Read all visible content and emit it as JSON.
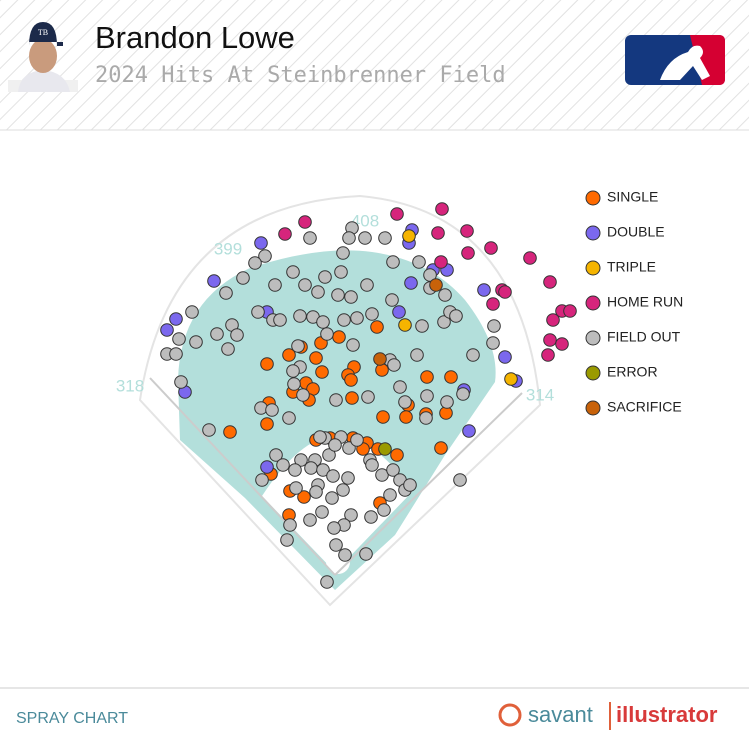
{
  "chart_data": {
    "type": "scatter",
    "title": "Brandon Lowe",
    "subtitle": "2024 Hits At Steinbrenner Field",
    "annotations": [
      "408",
      "399",
      "318",
      "314"
    ],
    "footer_label": "SPRAY CHART",
    "brand": [
      "savant",
      "illustrator"
    ],
    "series": [
      {
        "name": "SINGLE",
        "color": "#ff6a00",
        "x": [
          377,
          339,
          321,
          301,
          289,
          316,
          267,
          354,
          382,
          322,
          348,
          351,
          306,
          313,
          293,
          309,
          269,
          352,
          427,
          451,
          383,
          408,
          426,
          446,
          406,
          267,
          230,
          316,
          330,
          353,
          367,
          363,
          378,
          397,
          441,
          271,
          290,
          304,
          289,
          380
        ],
        "y": [
          327,
          337,
          343,
          347,
          355,
          358,
          364,
          367,
          370,
          372,
          375,
          380,
          383,
          389,
          392,
          400,
          403,
          398,
          377,
          377,
          417,
          405,
          414,
          413,
          417,
          424,
          432,
          440,
          438,
          438,
          443,
          449,
          449,
          455,
          448,
          474,
          491,
          497,
          515,
          503
        ]
      },
      {
        "name": "DOUBLE",
        "color": "#7b68ee",
        "x": [
          261,
          214,
          176,
          167,
          185,
          267,
          412,
          409,
          433,
          447,
          411,
          399,
          484,
          464,
          505,
          516,
          469,
          267
        ],
        "y": [
          243,
          281,
          319,
          330,
          392,
          312,
          230,
          243,
          270,
          270,
          283,
          312,
          290,
          390,
          357,
          381,
          431,
          467
        ]
      },
      {
        "name": "TRIPLE",
        "color": "#f5b400",
        "x": [
          409,
          405,
          511
        ],
        "y": [
          236,
          325,
          379
        ]
      },
      {
        "name": "HOME RUN",
        "color": "#d6257c",
        "x": [
          305,
          285,
          397,
          442,
          438,
          467,
          491,
          530,
          468,
          441,
          502,
          505,
          493,
          550,
          562,
          570,
          553,
          550,
          562,
          548
        ],
        "y": [
          222,
          234,
          214,
          209,
          233,
          231,
          248,
          258,
          253,
          262,
          290,
          292,
          304,
          282,
          311,
          311,
          320,
          340,
          344,
          355
        ]
      },
      {
        "name": "FIELD OUT",
        "color": "#bdbdbd",
        "x": [
          352,
          349,
          310,
          365,
          385,
          265,
          255,
          343,
          293,
          325,
          341,
          243,
          275,
          226,
          305,
          367,
          318,
          338,
          351,
          192,
          258,
          273,
          280,
          300,
          313,
          323,
          344,
          357,
          372,
          232,
          237,
          217,
          196,
          179,
          167,
          176,
          228,
          298,
          327,
          353,
          390,
          394,
          417,
          422,
          444,
          450,
          456,
          494,
          493,
          473,
          430,
          445,
          393,
          419,
          430,
          392,
          300,
          293,
          294,
          303,
          261,
          272,
          289,
          209,
          181,
          336,
          368,
          400,
          405,
          427,
          426,
          447,
          463,
          325,
          341,
          349,
          357,
          370,
          329,
          315,
          301,
          276,
          283,
          295,
          311,
          323,
          318,
          333,
          348,
          262,
          296,
          316,
          332,
          343,
          372,
          382,
          393,
          400,
          405,
          410,
          390,
          384,
          371,
          351,
          344,
          334,
          322,
          310,
          290,
          287,
          336,
          345,
          366,
          327,
          460,
          320,
          335
        ],
        "y": [
          228,
          238,
          238,
          238,
          238,
          256,
          263,
          253,
          272,
          277,
          272,
          278,
          285,
          293,
          285,
          285,
          292,
          295,
          297,
          312,
          312,
          320,
          320,
          316,
          317,
          322,
          320,
          318,
          314,
          325,
          335,
          334,
          342,
          339,
          354,
          354,
          349,
          346,
          334,
          345,
          360,
          365,
          355,
          326,
          322,
          312,
          316,
          326,
          343,
          355,
          288,
          295,
          262,
          262,
          275,
          300,
          367,
          371,
          384,
          395,
          408,
          410,
          418,
          430,
          382,
          400,
          397,
          387,
          402,
          396,
          418,
          402,
          394,
          438,
          437,
          448,
          440,
          460,
          455,
          460,
          460,
          455,
          465,
          470,
          468,
          470,
          485,
          476,
          478,
          480,
          488,
          492,
          498,
          490,
          465,
          475,
          470,
          480,
          490,
          485,
          495,
          510,
          517,
          515,
          525,
          528,
          512,
          520,
          525,
          540,
          545,
          555,
          554,
          582,
          480,
          437,
          445
        ]
      },
      {
        "name": "ERROR",
        "color": "#9a9a00",
        "x": [
          385
        ],
        "y": [
          449
        ]
      },
      {
        "name": "SACRIFICE",
        "color": "#c8620a",
        "x": [
          436,
          380
        ],
        "y": [
          285,
          359
        ]
      }
    ]
  }
}
